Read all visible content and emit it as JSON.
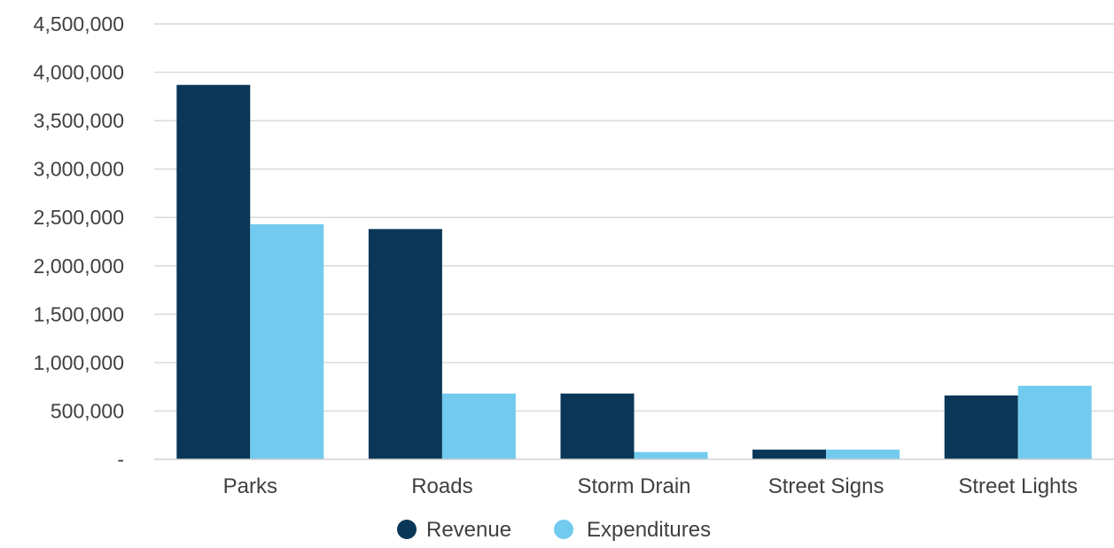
{
  "chart_data": {
    "type": "bar",
    "title": "",
    "xlabel": "",
    "ylabel": "",
    "categories": [
      "Parks",
      "Roads",
      "Storm Drain",
      "Street Signs",
      "Street Lights"
    ],
    "series": [
      {
        "name": "Revenue",
        "color": "#0a3757",
        "values": [
          3870000,
          2380000,
          680000,
          100000,
          660000
        ]
      },
      {
        "name": "Expenditures",
        "color": "#72cbee",
        "values": [
          2430000,
          680000,
          75000,
          100000,
          760000
        ]
      }
    ],
    "ylim": [
      0,
      4500000
    ],
    "yticks": [
      0,
      500000,
      1000000,
      1500000,
      2000000,
      2500000,
      3000000,
      3500000,
      4000000,
      4500000
    ],
    "ytick_labels": [
      "-",
      "500,000",
      "1,000,000",
      "1,500,000",
      "2,000,000",
      "2,500,000",
      "3,000,000",
      "3,500,000",
      "4,000,000",
      "4,500,000"
    ],
    "grid": true,
    "legend_position": "bottom-center",
    "legend_marker": "circle"
  }
}
